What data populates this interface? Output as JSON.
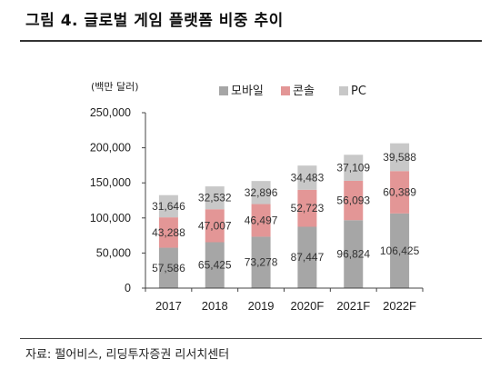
{
  "header": {
    "title": "그림 4. 글로벌 게임 플랫폼 비중 추이"
  },
  "footer": {
    "source": "자료: 펄어비스, 리딩투자증권 리서치센터"
  },
  "colors": {
    "mobile": "#a6a6a6",
    "console": "#e39696",
    "pc": "#c8c8c8"
  },
  "chart_data": {
    "type": "bar",
    "stacked": true,
    "unit_label": "(백만 달러)",
    "categories": [
      "2017",
      "2018",
      "2019",
      "2020F",
      "2021F",
      "2022F"
    ],
    "series": [
      {
        "name": "모바일",
        "values": [
          57586,
          65425,
          73278,
          87447,
          96824,
          106425
        ]
      },
      {
        "name": "콘솔",
        "values": [
          43288,
          47007,
          46497,
          52723,
          56093,
          60389
        ]
      },
      {
        "name": "PC",
        "values": [
          31646,
          32532,
          32896,
          34483,
          37109,
          39588
        ]
      }
    ],
    "ylim": [
      0,
      250000
    ],
    "yticks": [
      0,
      50000,
      100000,
      150000,
      200000,
      250000
    ],
    "ytick_labels": [
      "0",
      "50,000",
      "100,000",
      "150,000",
      "200,000",
      "250,000"
    ],
    "legend_position": "top-right",
    "grid": false
  }
}
